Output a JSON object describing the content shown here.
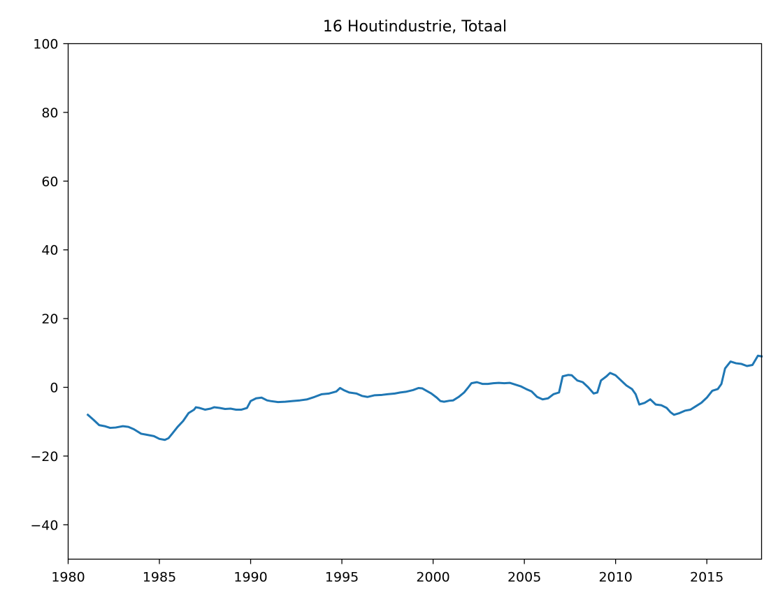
{
  "chart_data": {
    "type": "line",
    "title": "16 Houtindustrie, Totaal",
    "xlabel": "",
    "ylabel": "",
    "xlim": [
      1980,
      2018
    ],
    "ylim": [
      -50,
      100
    ],
    "grid": false,
    "x_ticks": [
      1980,
      1985,
      1990,
      1995,
      2000,
      2005,
      2010,
      2015
    ],
    "y_ticks": [
      -40,
      -20,
      0,
      20,
      40,
      60,
      80,
      100
    ],
    "x_tick_labels": [
      "1980",
      "1985",
      "1990",
      "1995",
      "2000",
      "2005",
      "2010",
      "2015"
    ],
    "y_tick_labels": [
      "−40",
      "−20",
      "0",
      "20",
      "40",
      "60",
      "80",
      "100"
    ],
    "series": [
      {
        "color": "#1f77b4",
        "x": [
          1981.08,
          1981.4,
          1981.7,
          1982.0,
          1982.3,
          1982.6,
          1983.0,
          1983.3,
          1983.6,
          1984.0,
          1984.3,
          1984.7,
          1985.0,
          1985.3,
          1985.5,
          1985.7,
          1986.0,
          1986.3,
          1986.6,
          1986.9,
          1987.0,
          1987.2,
          1987.5,
          1987.8,
          1988.0,
          1988.3,
          1988.6,
          1988.9,
          1989.2,
          1989.5,
          1989.8,
          1990.0,
          1990.3,
          1990.6,
          1990.9,
          1991.1,
          1991.5,
          1991.9,
          1992.3,
          1992.7,
          1993.1,
          1993.5,
          1993.9,
          1994.3,
          1994.7,
          1994.9,
          1995.1,
          1995.4,
          1995.8,
          1996.1,
          1996.4,
          1996.8,
          1997.2,
          1997.5,
          1997.9,
          1998.2,
          1998.5,
          1998.9,
          1999.2,
          1999.4,
          1999.6,
          1999.9,
          2000.2,
          2000.4,
          2000.6,
          2000.9,
          2001.1,
          2001.4,
          2001.7,
          2001.9,
          2002.1,
          2002.4,
          2002.7,
          2003.0,
          2003.3,
          2003.6,
          2003.9,
          2004.2,
          2004.5,
          2004.8,
          2005.1,
          2005.4,
          2005.7,
          2006.0,
          2006.3,
          2006.6,
          2006.9,
          2007.1,
          2007.4,
          2007.6,
          2007.9,
          2008.2,
          2008.5,
          2008.8,
          2009.0,
          2009.2,
          2009.5,
          2009.7,
          2010.0,
          2010.3,
          2010.6,
          2010.9,
          2011.1,
          2011.3,
          2011.6,
          2011.9,
          2012.2,
          2012.5,
          2012.8,
          2013.0,
          2013.2,
          2013.5,
          2013.8,
          2014.1,
          2014.4,
          2014.7,
          2015.0,
          2015.3,
          2015.6,
          2015.8,
          2016.0,
          2016.3,
          2016.6,
          2016.9,
          2017.2,
          2017.5,
          2017.8,
          2018.0
        ],
        "values": [
          -8.0,
          -9.5,
          -11.0,
          -11.3,
          -11.8,
          -11.7,
          -11.3,
          -11.5,
          -12.2,
          -13.5,
          -13.8,
          -14.2,
          -15.0,
          -15.3,
          -14.8,
          -13.5,
          -11.5,
          -9.8,
          -7.5,
          -6.5,
          -5.8,
          -6.0,
          -6.5,
          -6.2,
          -5.8,
          -6.0,
          -6.3,
          -6.2,
          -6.5,
          -6.5,
          -6.0,
          -4.0,
          -3.2,
          -3.0,
          -3.8,
          -4.0,
          -4.3,
          -4.2,
          -4.0,
          -3.8,
          -3.5,
          -2.8,
          -2.0,
          -1.8,
          -1.2,
          -0.2,
          -0.8,
          -1.5,
          -1.8,
          -2.5,
          -2.8,
          -2.3,
          -2.2,
          -2.0,
          -1.8,
          -1.5,
          -1.3,
          -0.8,
          -0.2,
          -0.3,
          -0.9,
          -1.8,
          -3.0,
          -4.0,
          -4.2,
          -3.9,
          -3.8,
          -2.8,
          -1.5,
          -0.2,
          1.2,
          1.5,
          1.0,
          1.0,
          1.2,
          1.3,
          1.2,
          1.3,
          0.8,
          0.3,
          -0.5,
          -1.2,
          -2.8,
          -3.5,
          -3.2,
          -2.0,
          -1.5,
          3.2,
          3.6,
          3.5,
          2.0,
          1.5,
          0.0,
          -1.8,
          -1.5,
          2.0,
          3.2,
          4.2,
          3.5,
          2.0,
          0.5,
          -0.5,
          -2.0,
          -5.0,
          -4.5,
          -3.5,
          -5.0,
          -5.2,
          -6.0,
          -7.2,
          -8.0,
          -7.5,
          -6.8,
          -6.5,
          -5.5,
          -4.5,
          -3.0,
          -1.0,
          -0.5,
          1.0,
          5.5,
          7.5,
          7.0,
          6.8,
          6.2,
          6.5,
          9.2,
          9.0
        ]
      }
    ]
  }
}
